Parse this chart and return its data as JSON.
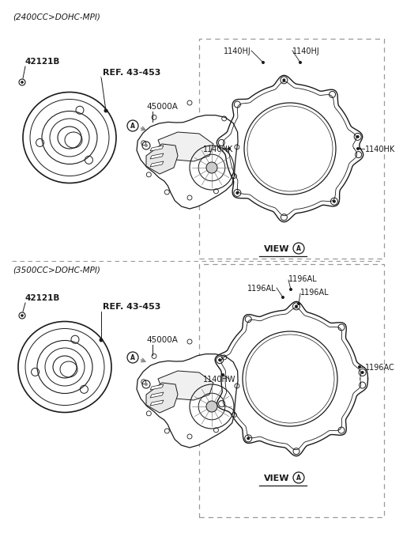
{
  "bg_color": "#ffffff",
  "line_color": "#1a1a1a",
  "dash_color": "#999999",
  "text_color": "#1a1a1a",
  "gray_color": "#888888",
  "section1_label": "(2400CC>DOHC-MPI)",
  "section2_label": "(3500CC>DOHC-MPI)",
  "label_42121B": "42121B",
  "label_ref": "REF. 43-453",
  "label_45000A": "45000A",
  "label_A": "A",
  "label_VIEW": "VIEW",
  "top_ring_labels": {
    "top_left": "1140HJ",
    "top_right": "1140HJ",
    "left": "1140HK",
    "right": "1140HK"
  },
  "bot_ring_labels": {
    "top1": "1196AL",
    "top2": "1196AL",
    "top3": "1196AL",
    "right": "1196AC",
    "left": "1140HW"
  },
  "fs_section": 7.5,
  "fs_label": 7,
  "fs_ref": 7.5,
  "fs_view": 8
}
